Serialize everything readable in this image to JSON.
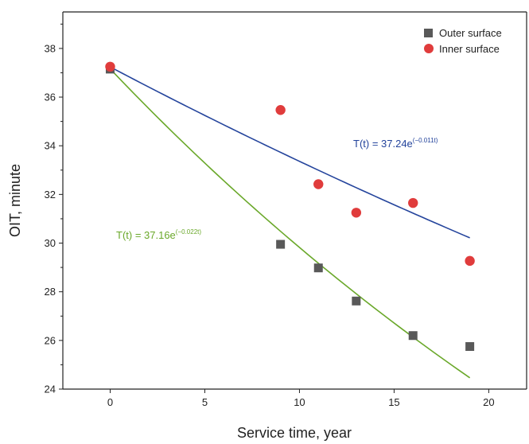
{
  "chart_data": {
    "type": "scatter",
    "title": "",
    "xlabel": "Service time, year",
    "ylabel": "OIT, minute",
    "xlim": [
      -2.5,
      22
    ],
    "ylim": [
      24,
      39.5
    ],
    "xticks": [
      0,
      5,
      10,
      15,
      20
    ],
    "yticks": [
      24,
      26,
      28,
      30,
      32,
      34,
      36,
      38
    ],
    "grid": false,
    "legend": "top-right",
    "series": [
      {
        "name": "Outer surface",
        "marker": "square",
        "color": "#595959",
        "points": [
          {
            "x": 0,
            "y": 37.15
          },
          {
            "x": 9,
            "y": 29.95
          },
          {
            "x": 11,
            "y": 28.98
          },
          {
            "x": 13,
            "y": 27.62
          },
          {
            "x": 16,
            "y": 26.2
          },
          {
            "x": 19,
            "y": 25.75
          }
        ],
        "fit": {
          "label_pre": "T(t) = 37.16e",
          "label_sup": "(−0.022t)",
          "a": 37.16,
          "k": -0.022,
          "x_range": [
            0,
            19
          ],
          "color": "#6aa82a"
        }
      },
      {
        "name": "Inner surface",
        "marker": "circle",
        "color": "#e03c3c",
        "points": [
          {
            "x": 0,
            "y": 37.25
          },
          {
            "x": 9,
            "y": 35.47
          },
          {
            "x": 11,
            "y": 32.42
          },
          {
            "x": 13,
            "y": 31.25
          },
          {
            "x": 16,
            "y": 31.65
          },
          {
            "x": 19,
            "y": 29.27
          }
        ],
        "fit": {
          "label_pre": "T(t) = 37.24e",
          "label_sup": "(−0.011t)",
          "a": 37.24,
          "k": -0.011,
          "x_range": [
            0,
            19
          ],
          "color": "#24449c"
        }
      }
    ]
  }
}
